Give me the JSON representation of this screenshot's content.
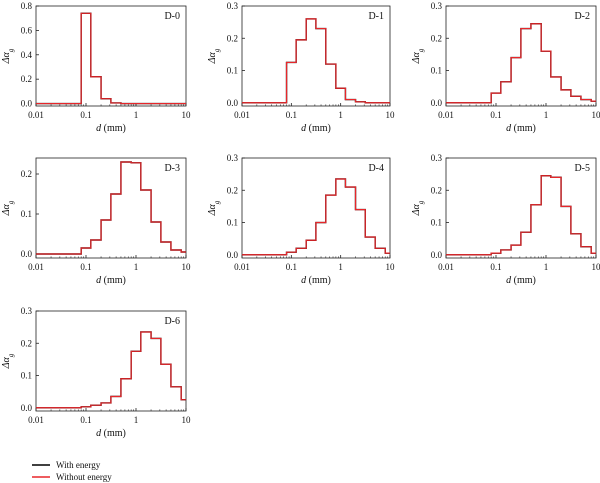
{
  "chart_data": {
    "type": "line",
    "step_style": "histogram",
    "x_scale": "log",
    "xlabel_var": "d",
    "xlabel_unit": " (mm)",
    "ylabel_sym": "Δα",
    "ylabel_sub": "g",
    "xticks": [
      0.01,
      0.1,
      1,
      10
    ],
    "xtick_labels": [
      "0.01",
      "0.1",
      "1",
      "10"
    ],
    "bin_edges": [
      0.01,
      0.08,
      0.125,
      0.2,
      0.315,
      0.5,
      0.8,
      1.25,
      2.0,
      3.15,
      5.0,
      8.0,
      10
    ],
    "legend": [
      {
        "label": "With energy",
        "color": "#000000"
      },
      {
        "label": "Without energy",
        "color": "#e8262a"
      }
    ],
    "panels": [
      {
        "label": "D-0",
        "ylim": [
          -0.02,
          0.8
        ],
        "yticks": [
          0.0,
          0.2,
          0.4,
          0.6,
          0.8
        ],
        "ytick_labels": [
          "0.0",
          "0.2",
          "0.4",
          "0.6",
          "0.8"
        ],
        "series": [
          {
            "name": "With energy",
            "values": [
              0,
              0.74,
              0.22,
              0.04,
              0.005,
              0,
              0,
              0,
              0,
              0,
              0,
              0
            ]
          },
          {
            "name": "Without energy",
            "values": [
              0,
              0.74,
              0.22,
              0.04,
              0.005,
              0,
              0,
              0,
              0,
              0,
              0,
              0
            ]
          }
        ]
      },
      {
        "label": "D-1",
        "ylim": [
          -0.01,
          0.3
        ],
        "yticks": [
          0.0,
          0.1,
          0.2,
          0.3
        ],
        "ytick_labels": [
          "0.0",
          "0.1",
          "0.2",
          "0.3"
        ],
        "series": [
          {
            "name": "With energy",
            "values": [
              0,
              0.125,
              0.195,
              0.26,
              0.23,
              0.12,
              0.045,
              0.01,
              0.003,
              0,
              0,
              0
            ]
          },
          {
            "name": "Without energy",
            "values": [
              0,
              0.125,
              0.195,
              0.26,
              0.23,
              0.12,
              0.045,
              0.01,
              0.003,
              0,
              0,
              0
            ]
          }
        ]
      },
      {
        "label": "D-2",
        "ylim": [
          -0.01,
          0.3
        ],
        "yticks": [
          0.0,
          0.1,
          0.2,
          0.3
        ],
        "ytick_labels": [
          "0.0",
          "0.1",
          "0.2",
          "0.3"
        ],
        "series": [
          {
            "name": "With energy",
            "values": [
              0,
              0.03,
              0.065,
              0.14,
              0.23,
              0.245,
              0.16,
              0.08,
              0.04,
              0.02,
              0.01,
              0.005
            ]
          },
          {
            "name": "Without energy",
            "values": [
              0,
              0.03,
              0.065,
              0.14,
              0.23,
              0.245,
              0.16,
              0.08,
              0.04,
              0.02,
              0.01,
              0.005
            ]
          }
        ]
      },
      {
        "label": "D-3",
        "ylim": [
          -0.01,
          0.24
        ],
        "yticks": [
          0.0,
          0.1,
          0.2
        ],
        "ytick_labels": [
          "0.0",
          "0.1",
          "0.2"
        ],
        "series": [
          {
            "name": "With energy",
            "values": [
              0,
              0.015,
              0.035,
              0.085,
              0.15,
              0.23,
              0.228,
              0.16,
              0.08,
              0.03,
              0.01,
              0.005
            ]
          },
          {
            "name": "Without energy",
            "values": [
              0,
              0.015,
              0.035,
              0.085,
              0.15,
              0.23,
              0.228,
              0.16,
              0.08,
              0.03,
              0.01,
              0.005
            ]
          }
        ]
      },
      {
        "label": "D-4",
        "ylim": [
          -0.01,
          0.3
        ],
        "yticks": [
          0.0,
          0.1,
          0.2,
          0.3
        ],
        "ytick_labels": [
          "0.0",
          "0.1",
          "0.2",
          "0.3"
        ],
        "series": [
          {
            "name": "With energy",
            "values": [
              0,
              0.008,
              0.02,
              0.045,
              0.1,
              0.185,
              0.235,
              0.21,
              0.14,
              0.055,
              0.02,
              0.005
            ]
          },
          {
            "name": "Without energy",
            "values": [
              0,
              0.008,
              0.02,
              0.045,
              0.1,
              0.185,
              0.235,
              0.21,
              0.14,
              0.055,
              0.02,
              0.005
            ]
          }
        ]
      },
      {
        "label": "D-5",
        "ylim": [
          -0.01,
          0.3
        ],
        "yticks": [
          0.0,
          0.1,
          0.2,
          0.3
        ],
        "ytick_labels": [
          "0.0",
          "0.1",
          "0.2",
          "0.3"
        ],
        "series": [
          {
            "name": "With energy",
            "values": [
              0,
              0.005,
              0.015,
              0.03,
              0.07,
              0.155,
              0.245,
              0.24,
              0.15,
              0.065,
              0.025,
              0.005
            ]
          },
          {
            "name": "Without energy",
            "values": [
              0,
              0.005,
              0.015,
              0.03,
              0.07,
              0.155,
              0.245,
              0.24,
              0.15,
              0.065,
              0.025,
              0.005
            ]
          }
        ]
      },
      {
        "label": "D-6",
        "ylim": [
          -0.01,
          0.3
        ],
        "yticks": [
          0.0,
          0.1,
          0.2,
          0.3
        ],
        "ytick_labels": [
          "0.0",
          "0.1",
          "0.2",
          "0.3"
        ],
        "series": [
          {
            "name": "With energy",
            "values": [
              0,
              0.003,
              0.008,
              0.015,
              0.035,
              0.09,
              0.175,
              0.235,
              0.215,
              0.135,
              0.065,
              0.025
            ]
          },
          {
            "name": "Without energy",
            "values": [
              0,
              0.003,
              0.008,
              0.015,
              0.035,
              0.09,
              0.175,
              0.235,
              0.215,
              0.135,
              0.065,
              0.025
            ]
          }
        ]
      }
    ]
  }
}
